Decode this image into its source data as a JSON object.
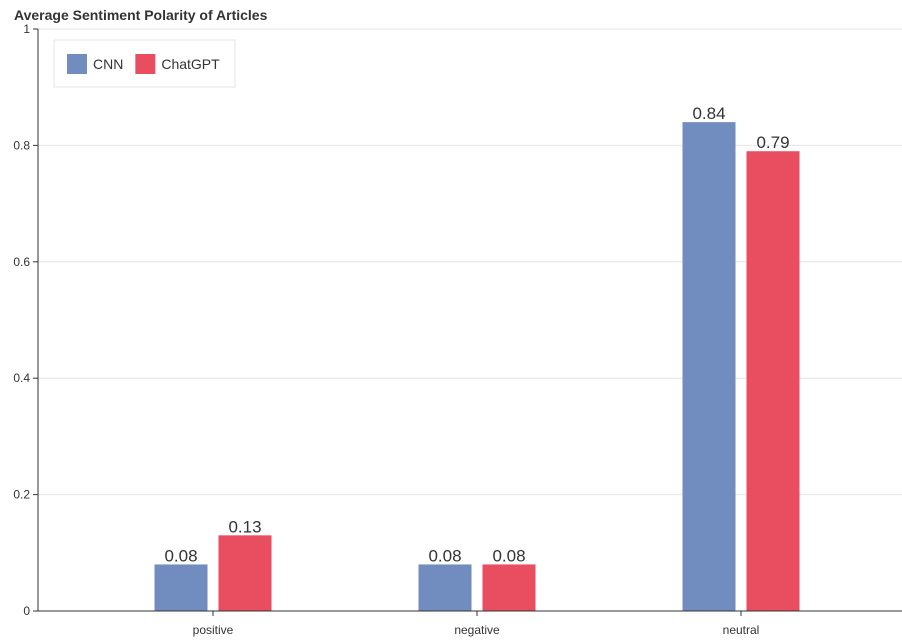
{
  "chart_data": {
    "type": "bar",
    "title": "Average Sentiment Polarity of Articles",
    "categories": [
      "positive",
      "negative",
      "neutral"
    ],
    "series": [
      {
        "name": "CNN",
        "values": [
          0.08,
          0.08,
          0.84
        ],
        "color": "#718dbf",
        "labels": [
          "0.08",
          "0.08",
          "0.84"
        ]
      },
      {
        "name": "ChatGPT",
        "values": [
          0.13,
          0.08,
          0.79
        ],
        "color": "#e84d60",
        "labels": [
          "0.13",
          "0.08",
          "0.79"
        ]
      }
    ],
    "yticks": [
      0,
      0.2,
      0.4,
      0.6,
      0.8,
      1
    ],
    "ytick_labels": [
      "0",
      "0.2",
      "0.4",
      "0.6",
      "0.8",
      "1"
    ],
    "ylim": [
      0,
      1
    ],
    "xlabel": "",
    "ylabel": "",
    "grid": "horizontal",
    "legend": "top-left"
  }
}
